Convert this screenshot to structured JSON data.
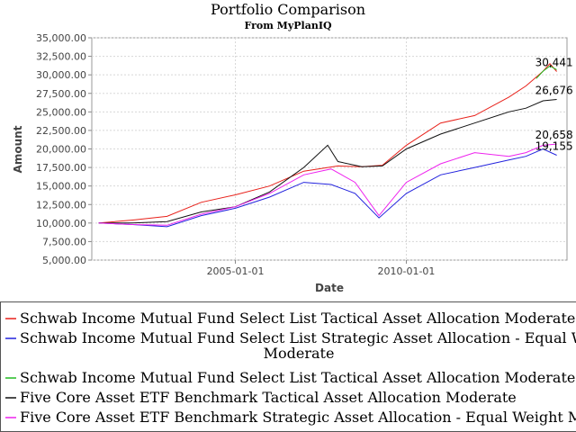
{
  "chart_data": {
    "type": "line",
    "title": "Portfolio Comparison",
    "subtitle": "From MyPlanIQ",
    "xlabel": "Date",
    "ylabel": "Amount",
    "ylim": [
      5000,
      35000
    ],
    "y_ticks": [
      5000,
      7500,
      10000,
      12500,
      15000,
      17500,
      20000,
      22500,
      25000,
      27500,
      30000,
      32500,
      35000
    ],
    "y_tick_labels": [
      "5,000.00",
      "7,500.00",
      "10,000.00",
      "12,500.00",
      "15,000.00",
      "17,500.00",
      "20,000.00",
      "22,500.00",
      "25,000.00",
      "27,500.00",
      "30,000.00",
      "32,500.00",
      "35,000.00"
    ],
    "x_ticks": [
      2005.0,
      2010.0
    ],
    "x_tick_labels": [
      "2005-01-01",
      "2010-01-01"
    ],
    "xlim": [
      2000.8,
      2014.7
    ],
    "grid": true,
    "legend_position": "bottom",
    "series": [
      {
        "name": "Schwab Income Mutual Fund Select List Tactical Asset Allocation Moderate",
        "color": "#e8211a",
        "end_label": "30,441",
        "x": [
          2001.0,
          2002.0,
          2003.0,
          2004.0,
          2005.0,
          2006.0,
          2007.0,
          2008.0,
          2008.7,
          2009.3,
          2010.0,
          2011.0,
          2012.0,
          2013.0,
          2013.5,
          2014.0,
          2014.2,
          2014.4
        ],
        "y": [
          10000,
          10400,
          10900,
          12800,
          13800,
          15000,
          17000,
          17700,
          17600,
          17800,
          20500,
          23500,
          24500,
          27000,
          28500,
          30500,
          31500,
          30441
        ]
      },
      {
        "name": "Schwab Income Mutual Fund Select List Strategic Asset Allocation - Equal Weight Moderate",
        "color": "#2222dd",
        "end_label": "19,155",
        "x": [
          2001.0,
          2002.0,
          2003.0,
          2004.0,
          2005.0,
          2006.0,
          2007.0,
          2007.8,
          2008.5,
          2009.2,
          2010.0,
          2011.0,
          2012.0,
          2013.0,
          2013.5,
          2014.0,
          2014.4
        ],
        "y": [
          10000,
          9800,
          9500,
          11000,
          12000,
          13500,
          15500,
          15200,
          14000,
          10700,
          14000,
          16500,
          17500,
          18500,
          19000,
          20000,
          19155
        ]
      },
      {
        "name": "Schwab Income Mutual Fund Select List Tactical Asset Allocation Moderate ne",
        "color": "#22bb22",
        "end_label": "",
        "x": [
          2013.8,
          2014.0,
          2014.2,
          2014.4
        ],
        "y": [
          29500,
          30500,
          31200,
          30700
        ]
      },
      {
        "name": "Five Core Asset ETF Benchmark Tactical Asset Allocation Moderate",
        "color": "#111111",
        "end_label": "26,676",
        "x": [
          2001.0,
          2002.0,
          2003.0,
          2004.0,
          2005.0,
          2006.0,
          2007.0,
          2007.7,
          2008.0,
          2008.7,
          2009.3,
          2010.0,
          2011.0,
          2012.0,
          2013.0,
          2013.5,
          2014.0,
          2014.4
        ],
        "y": [
          10000,
          10000,
          10200,
          11500,
          12200,
          14200,
          17500,
          20500,
          18300,
          17600,
          17700,
          20000,
          22000,
          23500,
          25000,
          25500,
          26500,
          26676
        ]
      },
      {
        "name": "Five Core Asset ETF Benchmark Strategic Asset Allocation - Equal Weight Mo",
        "color": "#ee22ee",
        "end_label": "20,658",
        "x": [
          2001.0,
          2002.0,
          2003.0,
          2004.0,
          2005.0,
          2006.0,
          2007.0,
          2007.8,
          2008.5,
          2009.2,
          2010.0,
          2011.0,
          2012.0,
          2013.0,
          2013.5,
          2014.0,
          2014.4
        ],
        "y": [
          10000,
          9800,
          9700,
          11200,
          12200,
          14000,
          16500,
          17300,
          15500,
          11000,
          15500,
          18000,
          19500,
          19000,
          19500,
          20500,
          20658
        ]
      }
    ]
  }
}
